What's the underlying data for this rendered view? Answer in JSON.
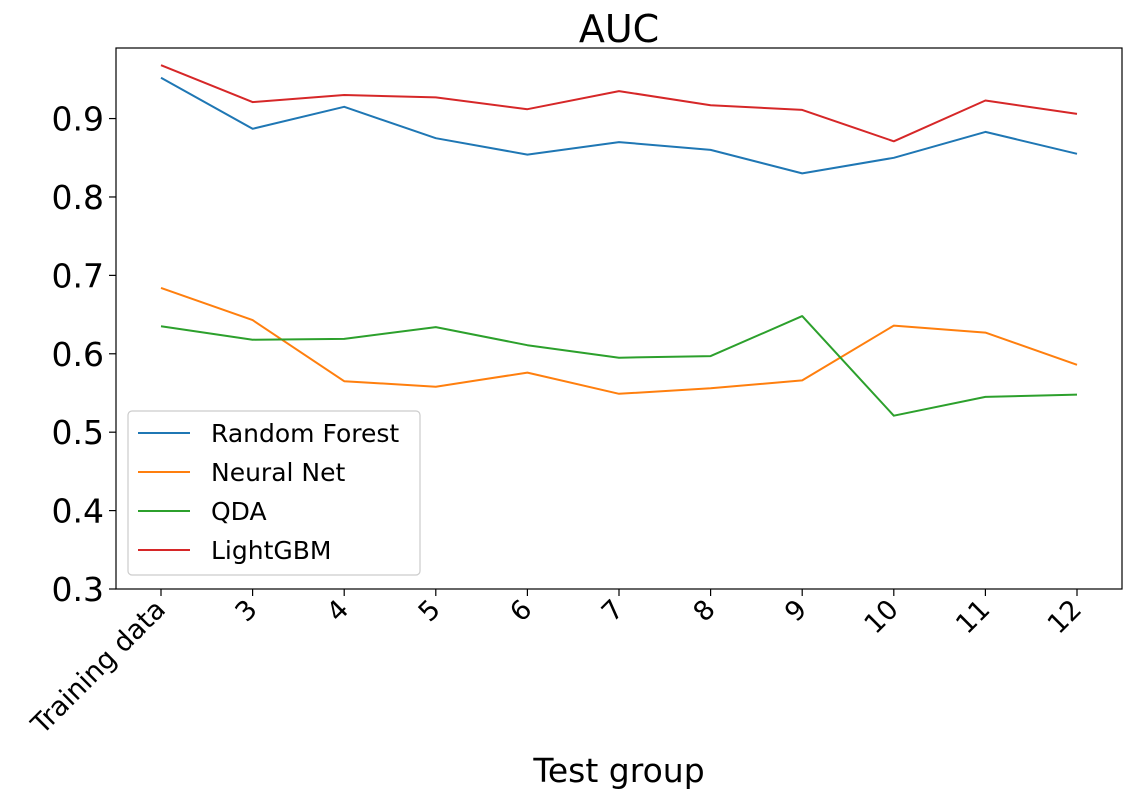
{
  "chart_data": {
    "type": "line",
    "title": "AUC",
    "xlabel": "Test group",
    "ylabel": "",
    "categories": [
      "Training data",
      "3",
      "4",
      "5",
      "6",
      "7",
      "8",
      "9",
      "10",
      "11",
      "12"
    ],
    "ylim": [
      0.3,
      0.99
    ],
    "yticks": [
      "0.3",
      "0.4",
      "0.5",
      "0.6",
      "0.7",
      "0.8",
      "0.9"
    ],
    "grid": false,
    "legend_position": "lower-left",
    "series": [
      {
        "name": "Random Forest",
        "color": "#1f77b4",
        "values": [
          0.952,
          0.887,
          0.915,
          0.875,
          0.854,
          0.87,
          0.86,
          0.83,
          0.85,
          0.883,
          0.855
        ]
      },
      {
        "name": "Neural Net",
        "color": "#ff7f0e",
        "values": [
          0.684,
          0.643,
          0.565,
          0.558,
          0.576,
          0.549,
          0.556,
          0.566,
          0.636,
          0.627,
          0.586
        ]
      },
      {
        "name": "QDA",
        "color": "#2ca02c",
        "values": [
          0.635,
          0.618,
          0.619,
          0.634,
          0.611,
          0.595,
          0.597,
          0.648,
          0.521,
          0.545,
          0.548
        ]
      },
      {
        "name": "LightGBM",
        "color": "#d62728",
        "values": [
          0.968,
          0.921,
          0.93,
          0.927,
          0.912,
          0.935,
          0.917,
          0.911,
          0.871,
          0.923,
          0.906
        ]
      }
    ]
  }
}
